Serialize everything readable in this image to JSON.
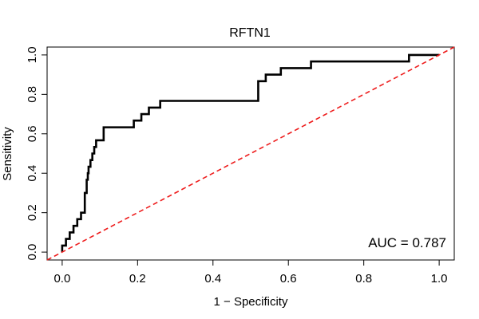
{
  "chart_data": {
    "type": "line",
    "title": "RFTN1",
    "xlabel": "1 − Specificity",
    "ylabel": "Sensitivity",
    "xlim": [
      -0.04,
      1.04
    ],
    "ylim": [
      -0.04,
      1.04
    ],
    "x_ticks": [
      0.0,
      0.2,
      0.4,
      0.6,
      0.8,
      1.0
    ],
    "y_ticks": [
      0.0,
      0.2,
      0.4,
      0.6,
      0.8,
      1.0
    ],
    "x_tick_labels": [
      "0.0",
      "0.2",
      "0.4",
      "0.6",
      "0.8",
      "1.0"
    ],
    "y_tick_labels": [
      "0.0",
      "0.2",
      "0.4",
      "0.6",
      "0.8",
      "1.0"
    ],
    "grid": false,
    "annotation": "AUC = 0.787",
    "series": [
      {
        "style": "solid",
        "color": "#000000",
        "x": [
          0.0,
          0.0,
          0.01,
          0.01,
          0.02,
          0.02,
          0.03,
          0.03,
          0.04,
          0.04,
          0.05,
          0.05,
          0.06,
          0.06,
          0.065,
          0.065,
          0.068,
          0.068,
          0.07,
          0.07,
          0.075,
          0.075,
          0.08,
          0.08,
          0.085,
          0.085,
          0.09,
          0.09,
          0.11,
          0.11,
          0.19,
          0.19,
          0.21,
          0.21,
          0.23,
          0.23,
          0.26,
          0.26,
          0.52,
          0.52,
          0.54,
          0.54,
          0.58,
          0.58,
          0.66,
          0.66,
          0.92,
          0.92,
          1.0
        ],
        "y": [
          0.0,
          0.033,
          0.033,
          0.067,
          0.067,
          0.1,
          0.1,
          0.133,
          0.133,
          0.167,
          0.167,
          0.2,
          0.2,
          0.3,
          0.3,
          0.367,
          0.367,
          0.4,
          0.4,
          0.433,
          0.433,
          0.467,
          0.467,
          0.5,
          0.5,
          0.533,
          0.533,
          0.567,
          0.567,
          0.633,
          0.633,
          0.667,
          0.667,
          0.7,
          0.7,
          0.733,
          0.733,
          0.767,
          0.767,
          0.867,
          0.867,
          0.9,
          0.9,
          0.933,
          0.933,
          0.967,
          0.967,
          1.0,
          1.0
        ]
      },
      {
        "style": "dashed",
        "color": "#ee1c1c",
        "x": [
          -0.04,
          1.04
        ],
        "y": [
          -0.04,
          1.04
        ]
      }
    ]
  }
}
